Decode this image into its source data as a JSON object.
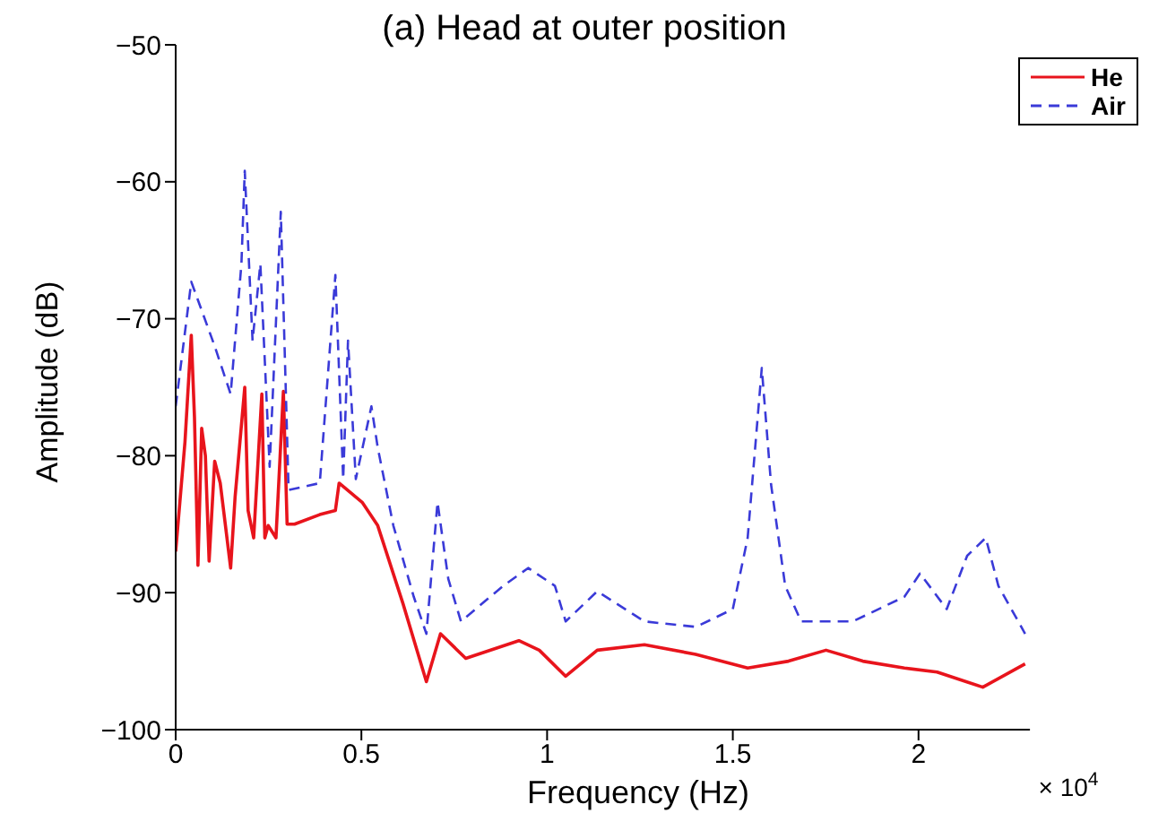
{
  "chart_data": {
    "type": "line",
    "title": "(a) Head at outer position",
    "xlabel": "Frequency (Hz)",
    "ylabel": "Amplitude (dB)",
    "annotations": [
      "× 10$^{4}$"
    ],
    "xlim": [
      0,
      2.3
    ],
    "xticks": [
      0,
      0.5,
      1,
      1.5,
      2
    ],
    "ylim": [
      -100,
      -50
    ],
    "yticks": [
      -100,
      -90,
      -80,
      -70,
      -60,
      -50
    ],
    "grid": false,
    "legend": "top right",
    "marker": "none",
    "series": [
      {
        "name": "He",
        "color": "#e8141c",
        "line_style": "solid",
        "x": [
          0,
          0.025,
          0.042,
          0.0506,
          0.06,
          0.07,
          0.08,
          0.09,
          0.105,
          0.12,
          0.148,
          0.16,
          0.186,
          0.195,
          0.21,
          0.232,
          0.24,
          0.249,
          0.27,
          0.29,
          0.3,
          0.32,
          0.388,
          0.43,
          0.44,
          0.502,
          0.544,
          0.612,
          0.675,
          0.713,
          0.781,
          0.924,
          0.979,
          1.05,
          1.135,
          1.262,
          1.4,
          1.54,
          1.65,
          1.751,
          1.85,
          1.962,
          2.05,
          2.173,
          2.287
        ],
        "values": [
          -87,
          -79,
          -71.2,
          -77.2,
          -88,
          -78,
          -80,
          -87.7,
          -80.4,
          -82,
          -88.2,
          -83,
          -75,
          -84,
          -86,
          -75.5,
          -86,
          -85.1,
          -86,
          -75.3,
          -85,
          -85,
          -84.3,
          -84,
          -82,
          -83.4,
          -85.1,
          -90.8,
          -96.5,
          -93,
          -94.8,
          -93.5,
          -94.2,
          -96.1,
          -94.2,
          -93.8,
          -94.5,
          -95.5,
          -95,
          -94.2,
          -95,
          -95.5,
          -95.8,
          -96.9,
          -95.2
        ]
      },
      {
        "name": "Air",
        "color": "#3a3ad8",
        "line_style": "dashed",
        "x": [
          0,
          0.042,
          0.105,
          0.148,
          0.177,
          0.186,
          0.207,
          0.228,
          0.253,
          0.283,
          0.304,
          0.388,
          0.43,
          0.451,
          0.464,
          0.485,
          0.527,
          0.544,
          0.586,
          0.641,
          0.675,
          0.705,
          0.734,
          0.768,
          0.882,
          0.949,
          1.021,
          1.05,
          1.135,
          1.262,
          1.401,
          1.5,
          1.54,
          1.578,
          1.603,
          1.641,
          1.684,
          1.823,
          1.962,
          2.004,
          2.076,
          2.131,
          2.181,
          2.215,
          2.287
        ],
        "values": [
          -76.4,
          -67.3,
          -72,
          -75.5,
          -66,
          -59.2,
          -71.6,
          -66,
          -80.8,
          -62.2,
          -82.5,
          -82,
          -66.8,
          -81.7,
          -71.6,
          -81.7,
          -76.4,
          -79.4,
          -85.1,
          -90.3,
          -93,
          -83.4,
          -89,
          -92.1,
          -89.5,
          -88.2,
          -89.5,
          -92.1,
          -89.9,
          -92.1,
          -92.5,
          -91.2,
          -86,
          -73.6,
          -82.1,
          -89.5,
          -92.1,
          -92.1,
          -90.3,
          -88.6,
          -91.2,
          -87.3,
          -86,
          -89.5,
          -93
        ]
      }
    ]
  }
}
